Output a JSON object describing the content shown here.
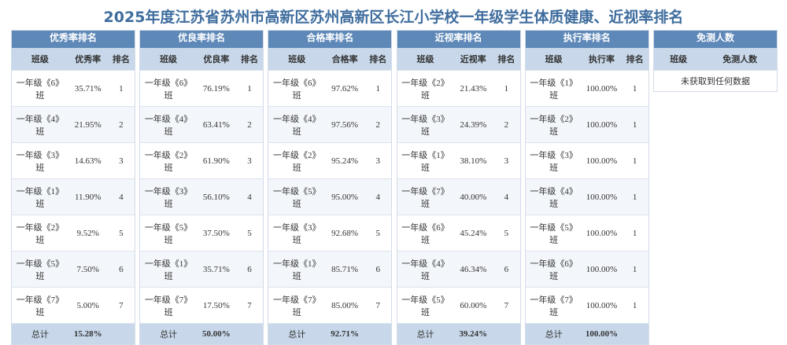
{
  "title": "2025年度江苏省苏州市高新区苏州高新区长江小学校一年级学生体质健康、近视率排名",
  "panels": [
    {
      "title": "优秀率排名",
      "headers": [
        "班级",
        "优秀率",
        "排名"
      ],
      "rows": [
        [
          "一年级《6》班",
          "35.71%",
          "1"
        ],
        [
          "一年级《4》班",
          "21.95%",
          "2"
        ],
        [
          "一年级《3》班",
          "14.63%",
          "3"
        ],
        [
          "一年级《1》班",
          "11.90%",
          "4"
        ],
        [
          "一年级《2》班",
          "9.52%",
          "5"
        ],
        [
          "一年级《5》班",
          "7.50%",
          "6"
        ],
        [
          "一年级《7》班",
          "5.00%",
          "7"
        ]
      ],
      "total": [
        "总计",
        "15.28%"
      ]
    },
    {
      "title": "优良率排名",
      "headers": [
        "班级",
        "优良率",
        "排名"
      ],
      "rows": [
        [
          "一年级《6》班",
          "76.19%",
          "1"
        ],
        [
          "一年级《4》班",
          "63.41%",
          "2"
        ],
        [
          "一年级《2》班",
          "61.90%",
          "3"
        ],
        [
          "一年级《3》班",
          "56.10%",
          "4"
        ],
        [
          "一年级《5》班",
          "37.50%",
          "5"
        ],
        [
          "一年级《1》班",
          "35.71%",
          "6"
        ],
        [
          "一年级《7》班",
          "17.50%",
          "7"
        ]
      ],
      "total": [
        "总计",
        "50.00%"
      ]
    },
    {
      "title": "合格率排名",
      "headers": [
        "班级",
        "合格率",
        "排名"
      ],
      "rows": [
        [
          "一年级《6》班",
          "97.62%",
          "1"
        ],
        [
          "一年级《4》班",
          "97.56%",
          "2"
        ],
        [
          "一年级《2》班",
          "95.24%",
          "3"
        ],
        [
          "一年级《5》班",
          "95.00%",
          "4"
        ],
        [
          "一年级《3》班",
          "92.68%",
          "5"
        ],
        [
          "一年级《1》班",
          "85.71%",
          "6"
        ],
        [
          "一年级《7》班",
          "85.00%",
          "7"
        ]
      ],
      "total": [
        "总计",
        "92.71%"
      ]
    },
    {
      "title": "近视率排名",
      "headers": [
        "班级",
        "近视率",
        "排名"
      ],
      "rows": [
        [
          "一年级《2》班",
          "21.43%",
          "1"
        ],
        [
          "一年级《3》班",
          "24.39%",
          "2"
        ],
        [
          "一年级《1》班",
          "38.10%",
          "3"
        ],
        [
          "一年级《7》班",
          "40.00%",
          "4"
        ],
        [
          "一年级《6》班",
          "45.24%",
          "5"
        ],
        [
          "一年级《4》班",
          "46.34%",
          "6"
        ],
        [
          "一年级《5》班",
          "60.00%",
          "7"
        ]
      ],
      "total": [
        "总计",
        "39.24%"
      ]
    },
    {
      "title": "执行率排名",
      "headers": [
        "班级",
        "执行率",
        "排名"
      ],
      "rows": [
        [
          "一年级《1》班",
          "100.00%",
          "1"
        ],
        [
          "一年级《2》班",
          "100.00%",
          "1"
        ],
        [
          "一年级《3》班",
          "100.00%",
          "1"
        ],
        [
          "一年级《4》班",
          "100.00%",
          "1"
        ],
        [
          "一年级《5》班",
          "100.00%",
          "1"
        ],
        [
          "一年级《6》班",
          "100.00%",
          "1"
        ],
        [
          "一年级《7》班",
          "100.00%",
          "1"
        ]
      ],
      "total": [
        "总计",
        "100.00%"
      ]
    },
    {
      "title": "免测人数",
      "headers": [
        "班级",
        "免测人数"
      ],
      "empty": "未获取到任何数据"
    }
  ]
}
